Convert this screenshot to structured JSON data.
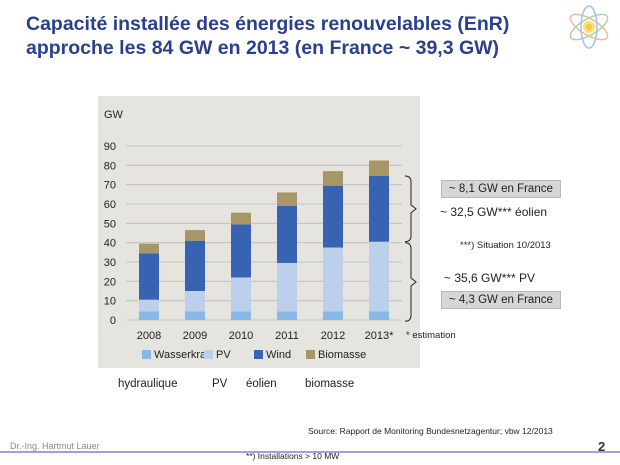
{
  "title": {
    "line1": "Capacité installée des énergies renouvelables (EnR)",
    "line2": "approche les 84 GW en 2013 (en France ~ 39,3 GW)"
  },
  "chart_data": {
    "type": "bar",
    "stacked": true,
    "ylabel": "GW",
    "ylim": [
      0,
      90
    ],
    "yticks": [
      0,
      10,
      20,
      30,
      40,
      50,
      60,
      70,
      80,
      90
    ],
    "grid": true,
    "legend_position": "bottom",
    "categories": [
      "2008",
      "2009",
      "2010",
      "2011",
      "2012",
      "2013*"
    ],
    "series": [
      {
        "name": "Wasserkraft",
        "color": "#88b8e6",
        "values": [
          4.5,
          4.5,
          4.5,
          4.5,
          4.5,
          4.5
        ]
      },
      {
        "name": "PV",
        "color": "#bcd0ec",
        "values": [
          6.0,
          10.5,
          17.5,
          25.0,
          33.0,
          36.0
        ]
      },
      {
        "name": "Wind",
        "color": "#3862b2",
        "values": [
          24.0,
          26.0,
          27.5,
          29.5,
          32.0,
          34.0
        ]
      },
      {
        "name": "Biomasse",
        "color": "#a89766",
        "values": [
          5.0,
          5.5,
          6.0,
          7.0,
          7.5,
          8.0
        ]
      }
    ]
  },
  "annotations": {
    "wind_france": "~ 8,1 GW en France",
    "wind_total": "~ 32,5 GW*** éolien",
    "situation": "***) Situation 10/2013",
    "pv_total": "~ 35,6 GW*** PV",
    "pv_france": "~ 4,3 GW en France",
    "estimation": "* estimation"
  },
  "translations": [
    "hydraulique",
    "PV",
    "éolien",
    "biomasse"
  ],
  "source": "Source: Rapport de Monitoring  Bundesnetzagentur; vbw 12/2013",
  "installations_note": "**) Installations > 10 MW",
  "author": "Dr.-Ing. Hartmut Lauer",
  "page_number": "2"
}
